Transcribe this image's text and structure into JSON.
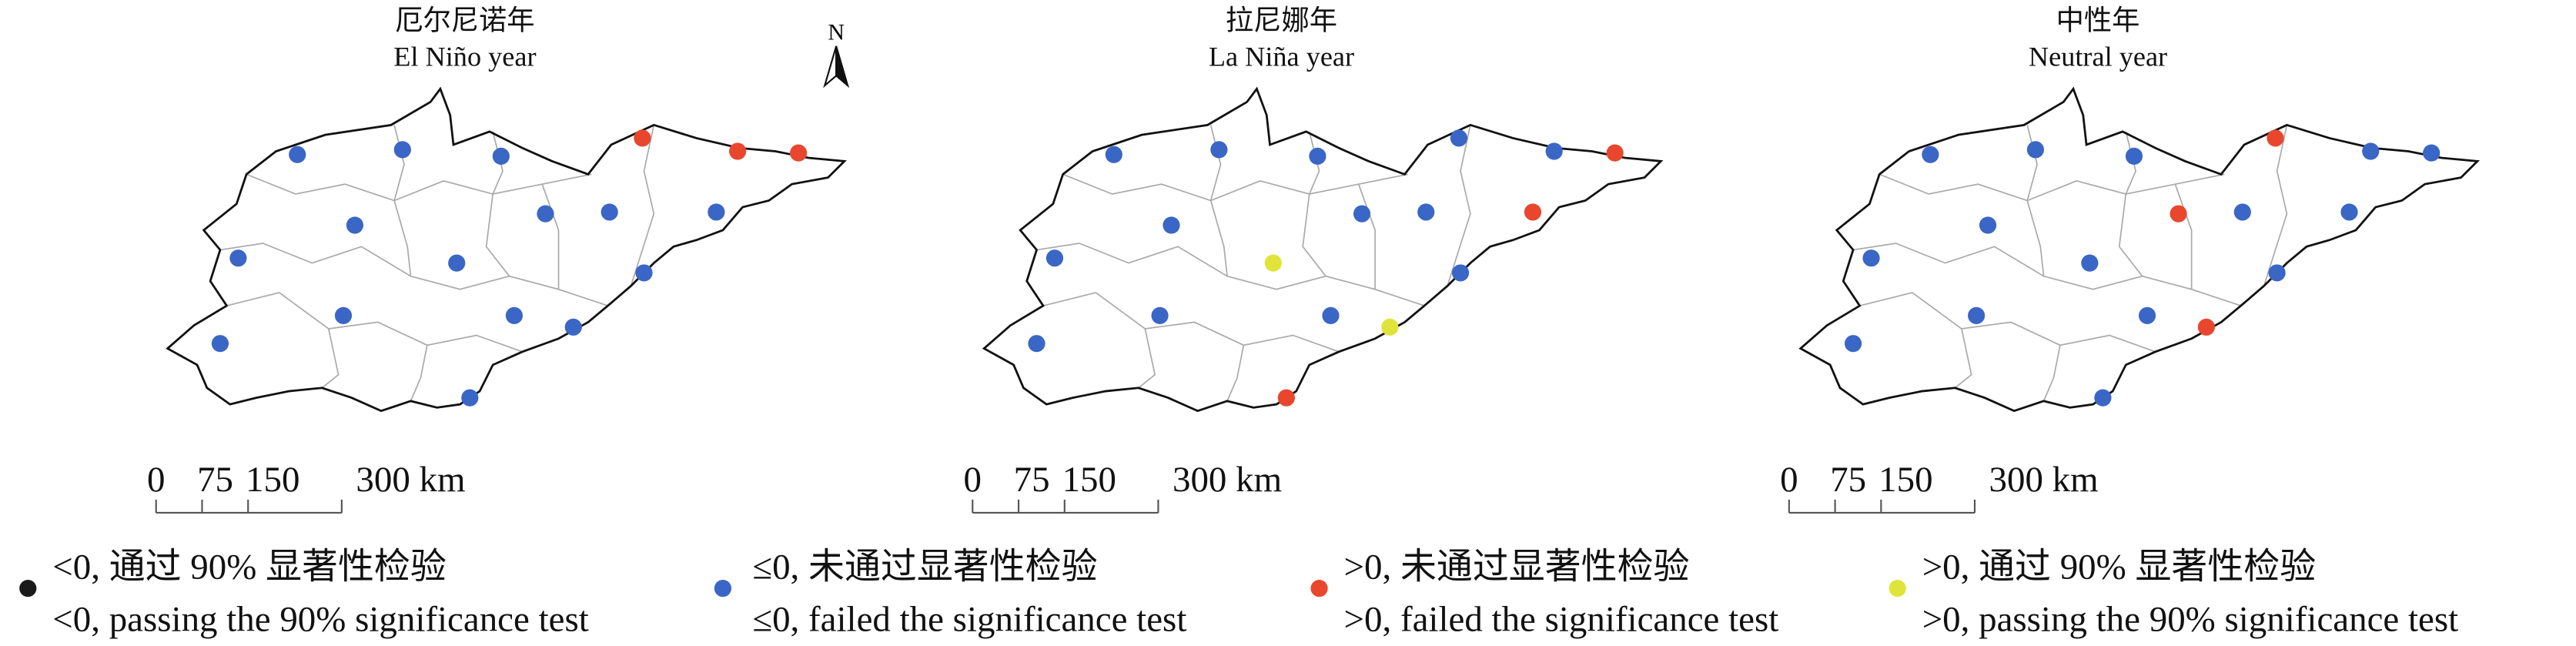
{
  "north": "N",
  "panels": [
    {
      "title_zh": "厄尔尼诺年",
      "title_en": "El Niño year",
      "stations": [
        1,
        1,
        1,
        2,
        2,
        2,
        1,
        1,
        1,
        1,
        1,
        1,
        1,
        1,
        1,
        1,
        1,
        1
      ]
    },
    {
      "title_zh": "拉尼娜年",
      "title_en": "La Niña year",
      "stations": [
        1,
        1,
        1,
        1,
        1,
        2,
        1,
        1,
        1,
        2,
        1,
        3,
        1,
        1,
        1,
        3,
        1,
        2
      ]
    },
    {
      "title_zh": "中性年",
      "title_en": "Neutral year",
      "stations": [
        1,
        1,
        1,
        2,
        1,
        1,
        1,
        2,
        1,
        1,
        1,
        1,
        1,
        1,
        1,
        2,
        1,
        1
      ]
    }
  ],
  "scale_bar": {
    "labels": [
      "0",
      "75",
      "150",
      "300 km"
    ]
  },
  "legend": [
    {
      "zh": "<0, 通过 90% 显著性检验",
      "en": "<0, passing the 90% significance test",
      "color": "#1a1a1a"
    },
    {
      "zh": "≤0, 未通过显著性检验",
      "en": "≤0, failed the significance test",
      "color": "#3a66c6"
    },
    {
      "zh": ">0, 未通过显著性检验",
      "en": ">0, failed the significance test",
      "color": "#e8472e"
    },
    {
      "zh": ">0, 通过 90% 显著性检验",
      "en": ">0, passing the 90% significance test",
      "color": "#e0e43a"
    }
  ]
}
